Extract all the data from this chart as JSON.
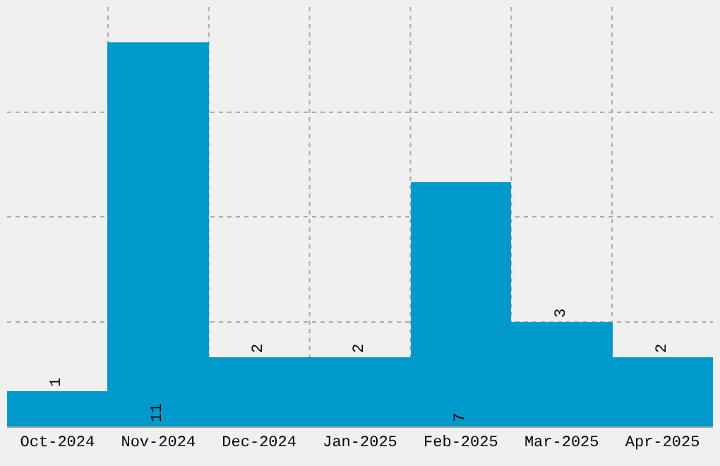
{
  "chart_data": {
    "type": "bar",
    "categories": [
      "Oct-2024",
      "Nov-2024",
      "Dec-2024",
      "Jan-2025",
      "Feb-2025",
      "Mar-2025",
      "Apr-2025"
    ],
    "values": [
      1,
      11,
      2,
      2,
      7,
      3,
      2
    ],
    "color": "#0099cc",
    "ylim": [
      0,
      12
    ],
    "yticks": [
      {
        "value": 0,
        "label": null
      },
      {
        "value": 3,
        "label": null
      },
      {
        "value": 6,
        "label": null
      },
      {
        "value": 9,
        "label": null
      }
    ],
    "tick_labels": "x",
    "grid": true,
    "legend": false,
    "data_labels": true
  }
}
